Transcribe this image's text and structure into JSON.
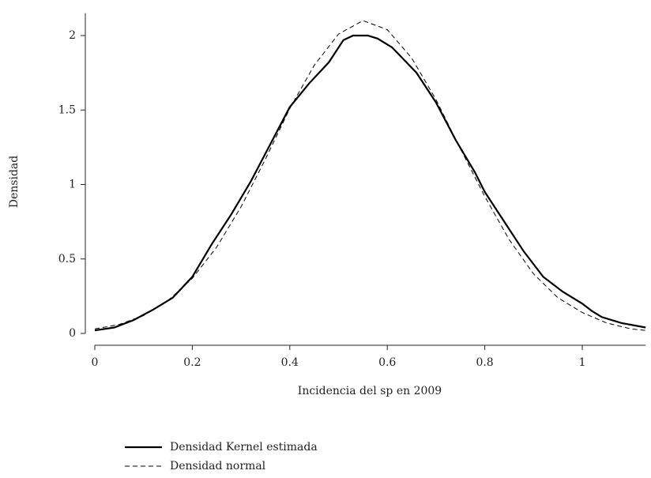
{
  "chart_data": {
    "type": "line",
    "xlabel": "Incidencia del sp en 2009",
    "ylabel": "Densidad",
    "xlim": [
      0,
      1.13
    ],
    "xticks": [
      0,
      0.2,
      0.4,
      0.6,
      0.8,
      1
    ],
    "ylim": [
      0,
      2.15
    ],
    "yticks": [
      0,
      0.5,
      1,
      1.5,
      2
    ],
    "legend": "bottom",
    "series": [
      {
        "name": "Densidad Kernel estimada",
        "color": "#000000",
        "style": "solid",
        "x": [
          0,
          0.04,
          0.08,
          0.12,
          0.16,
          0.2,
          0.24,
          0.28,
          0.32,
          0.36,
          0.4,
          0.44,
          0.48,
          0.51,
          0.53,
          0.56,
          0.58,
          0.61,
          0.66,
          0.7,
          0.74,
          0.78,
          0.8,
          0.84,
          0.88,
          0.92,
          0.96,
          1,
          1.02,
          1.04,
          1.08,
          1.13
        ],
        "values": [
          0.02,
          0.04,
          0.09,
          0.16,
          0.24,
          0.38,
          0.6,
          0.8,
          1.02,
          1.27,
          1.52,
          1.68,
          1.82,
          1.97,
          2.0,
          2.0,
          1.98,
          1.92,
          1.75,
          1.55,
          1.3,
          1.08,
          0.95,
          0.75,
          0.55,
          0.38,
          0.28,
          0.2,
          0.15,
          0.11,
          0.07,
          0.04
        ]
      },
      {
        "name": "Densidad normal",
        "color": "#000000",
        "style": "dashed",
        "x": [
          0,
          0.05,
          0.1,
          0.15,
          0.2,
          0.25,
          0.3,
          0.35,
          0.4,
          0.45,
          0.5,
          0.55,
          0.6,
          0.65,
          0.7,
          0.75,
          0.8,
          0.85,
          0.9,
          0.95,
          1,
          1.05,
          1.1,
          1.13
        ],
        "values": [
          0.03,
          0.06,
          0.12,
          0.22,
          0.37,
          0.58,
          0.85,
          1.17,
          1.51,
          1.8,
          2.01,
          2.1,
          2.04,
          1.85,
          1.57,
          1.24,
          0.92,
          0.63,
          0.4,
          0.24,
          0.14,
          0.07,
          0.03,
          0.02
        ]
      }
    ]
  }
}
